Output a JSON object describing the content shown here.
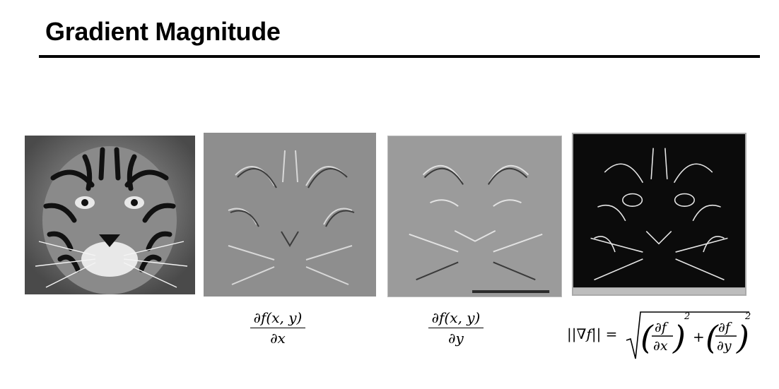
{
  "slide": {
    "title": "Gradient Magnitude"
  },
  "panels": [
    {
      "name": "original-tiger"
    },
    {
      "name": "x-derivative"
    },
    {
      "name": "y-derivative"
    },
    {
      "name": "gradient-magnitude"
    }
  ],
  "formulas": {
    "dx": {
      "numerator": "∂f(x, y)",
      "denominator": "∂x"
    },
    "dy": {
      "numerator": "∂f(x, y)",
      "denominator": "∂y"
    },
    "magnitude": {
      "lhs": "||∇f|| =",
      "term1_num": "∂f",
      "term1_den": "∂x",
      "plus": "+",
      "term2_num": "∂f",
      "term2_den": "∂y",
      "exponent": "2"
    }
  }
}
